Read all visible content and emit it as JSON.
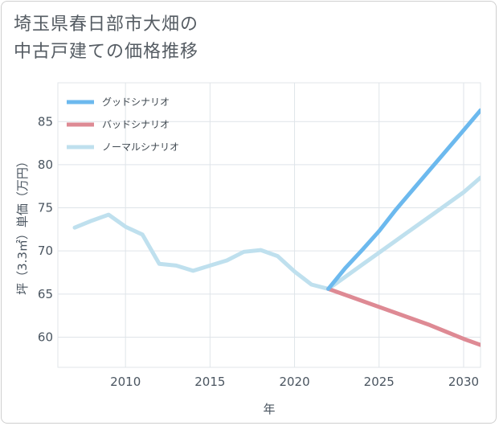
{
  "title_lines": [
    "埼玉県春日部市大畑の",
    "中古戸建ての価格推移"
  ],
  "chart_data": {
    "type": "line",
    "xlabel": "年",
    "ylabel": "坪（3.3㎡）単価（万円）",
    "xlim": [
      2006,
      2031
    ],
    "ylim": [
      56.5,
      89.5
    ],
    "xticks": [
      2010,
      2015,
      2020,
      2025,
      2030
    ],
    "yticks": [
      60,
      65,
      70,
      75,
      80,
      85
    ],
    "xtick_labels": [
      "2010",
      "2015",
      "2020",
      "2025",
      "2030"
    ],
    "ytick_labels": [
      "60",
      "65",
      "70",
      "75",
      "80",
      "85"
    ],
    "grid": true,
    "legend_position": "top-left",
    "series": [
      {
        "name": "グッドシナリオ",
        "color": "#6cb9ee",
        "x": [
          2022,
          2023,
          2024,
          2025,
          2026,
          2027,
          2028,
          2029,
          2030,
          2031
        ],
        "y": [
          65.6,
          68.0,
          70.1,
          72.3,
          74.8,
          77.1,
          79.4,
          81.7,
          84.0,
          86.3
        ]
      },
      {
        "name": "バッドシナリオ",
        "color": "#de8a94",
        "x": [
          2022,
          2023,
          2024,
          2025,
          2026,
          2027,
          2028,
          2029,
          2030,
          2031
        ],
        "y": [
          65.6,
          64.9,
          64.2,
          63.5,
          62.8,
          62.1,
          61.4,
          60.6,
          59.8,
          59.1
        ]
      },
      {
        "name": "ノーマルシナリオ",
        "color": "#bfe0ee",
        "x": [
          2007,
          2008,
          2009,
          2010,
          2011,
          2012,
          2013,
          2014,
          2015,
          2016,
          2017,
          2018,
          2019,
          2020,
          2021,
          2022,
          2023,
          2024,
          2025,
          2026,
          2027,
          2028,
          2029,
          2030,
          2031
        ],
        "y": [
          72.7,
          73.5,
          74.2,
          72.8,
          71.9,
          68.5,
          68.3,
          67.7,
          68.3,
          68.9,
          69.9,
          70.1,
          69.4,
          67.6,
          66.1,
          65.6,
          67.0,
          68.4,
          69.8,
          71.2,
          72.6,
          74.0,
          75.4,
          76.8,
          78.5
        ]
      }
    ]
  }
}
